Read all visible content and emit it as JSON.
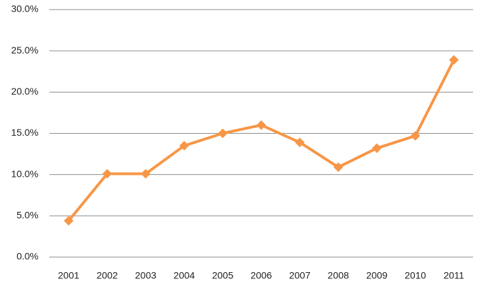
{
  "chart_data": {
    "type": "line",
    "categories": [
      "2001",
      "2002",
      "2003",
      "2004",
      "2005",
      "2006",
      "2007",
      "2008",
      "2009",
      "2010",
      "2011"
    ],
    "values": [
      4.4,
      10.1,
      10.1,
      13.5,
      15.0,
      16.0,
      13.9,
      10.9,
      13.2,
      14.7,
      23.9
    ],
    "color": "#f79646",
    "ylim": [
      0,
      30
    ],
    "yticks": [
      {
        "value": 0,
        "label": "0.0%"
      },
      {
        "value": 5,
        "label": "5.0%"
      },
      {
        "value": 10,
        "label": "10.0%"
      },
      {
        "value": 15,
        "label": "15.0%"
      },
      {
        "value": 20,
        "label": "20.0%"
      },
      {
        "value": 25,
        "label": "25.0%"
      },
      {
        "value": 30,
        "label": "30.0%"
      }
    ],
    "grid": true
  }
}
